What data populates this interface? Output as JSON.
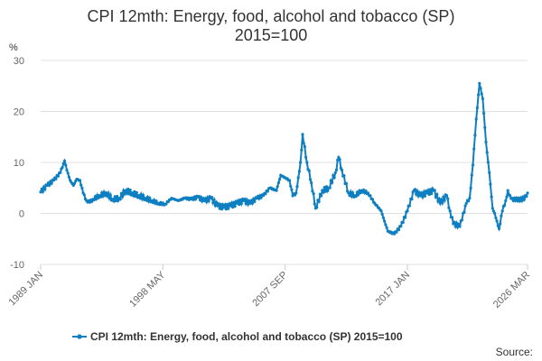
{
  "chart_data": {
    "type": "line",
    "title": "CPI 12mth: Energy, food, alcohol and tobacco (SP)",
    "subtitle": "2015=100",
    "ylabel": "%",
    "ylim": [
      -10,
      30
    ],
    "yticks": [
      -10,
      0,
      10,
      20,
      30
    ],
    "xlim": [
      1989.0,
      2026.17
    ],
    "xticks": [
      {
        "label": "1989 JAN",
        "x": 1989.0
      },
      {
        "label": "1998 MAY",
        "x": 1998.33
      },
      {
        "label": "2007 SEP",
        "x": 2007.67
      },
      {
        "label": "2017 JAN",
        "x": 2017.0
      },
      {
        "label": "2026 MAR",
        "x": 2026.17
      }
    ],
    "grid": true,
    "legend_position": "bottom",
    "series": [
      {
        "name": "CPI 12mth: Energy, food, alcohol and tobacco (SP) 2015=100",
        "color": "#0e7fc0",
        "x": [
          1989.0,
          1989.5,
          1990.0,
          1990.5,
          1990.83,
          1991.0,
          1991.25,
          1991.5,
          1991.75,
          1992.0,
          1992.25,
          1992.5,
          1992.75,
          1993.0,
          1993.5,
          1994.0,
          1994.5,
          1995.0,
          1995.5,
          1996.0,
          1996.5,
          1997.0,
          1997.5,
          1998.0,
          1998.5,
          1999.0,
          1999.5,
          2000.0,
          2000.5,
          2001.0,
          2001.5,
          2002.0,
          2002.5,
          2003.0,
          2003.5,
          2004.0,
          2004.5,
          2005.0,
          2005.5,
          2006.0,
          2006.5,
          2007.0,
          2007.33,
          2007.67,
          2008.0,
          2008.25,
          2008.5,
          2008.67,
          2008.83,
          2009.0,
          2009.33,
          2009.67,
          2010.0,
          2010.5,
          2011.0,
          2011.5,
          2011.75,
          2012.0,
          2012.5,
          2013.0,
          2013.5,
          2014.0,
          2014.5,
          2015.0,
          2015.25,
          2015.5,
          2016.0,
          2016.5,
          2017.0,
          2017.5,
          2018.0,
          2018.5,
          2019.0,
          2019.5,
          2020.0,
          2020.25,
          2020.5,
          2021.0,
          2021.5,
          2021.75,
          2022.0,
          2022.25,
          2022.5,
          2022.75,
          2023.0,
          2023.25,
          2023.5,
          2023.67,
          2023.83,
          2024.0,
          2024.25,
          2024.5,
          2024.67,
          2024.83,
          2025.0,
          2025.25,
          2025.5,
          2025.75,
          2026.0,
          2026.17
        ],
        "values": [
          4.2,
          5.5,
          6.5,
          8.0,
          10.3,
          8.5,
          6.5,
          5.5,
          6.7,
          6.5,
          4.0,
          2.5,
          2.2,
          2.8,
          3.5,
          4.0,
          2.8,
          3.0,
          4.5,
          4.0,
          3.5,
          3.0,
          2.5,
          2.0,
          1.8,
          3.0,
          2.5,
          3.0,
          2.8,
          3.2,
          2.5,
          3.0,
          1.5,
          1.2,
          1.5,
          2.0,
          2.5,
          2.0,
          3.0,
          3.5,
          5.0,
          4.5,
          7.5,
          7.0,
          6.5,
          3.5,
          4.0,
          7.0,
          10.0,
          15.5,
          10.0,
          6.0,
          1.0,
          4.5,
          5.0,
          8.0,
          11.0,
          8.5,
          4.0,
          3.5,
          4.5,
          4.0,
          2.0,
          0.5,
          -1.5,
          -3.5,
          -4.0,
          -2.5,
          0.5,
          4.5,
          3.5,
          4.0,
          4.5,
          2.0,
          3.5,
          0.5,
          -2.0,
          -2.5,
          2.0,
          3.0,
          9.5,
          18.5,
          25.5,
          22.5,
          14.0,
          8.0,
          1.0,
          0.0,
          -1.5,
          -3.0,
          0.5,
          2.5,
          4.5,
          3.5,
          3.0,
          2.5,
          3.0,
          2.5,
          3.5,
          4.0
        ]
      }
    ]
  },
  "legend": {
    "label": "CPI 12mth: Energy, food, alcohol and tobacco (SP) 2015=100"
  },
  "footer": {
    "source_label": "Source:"
  }
}
